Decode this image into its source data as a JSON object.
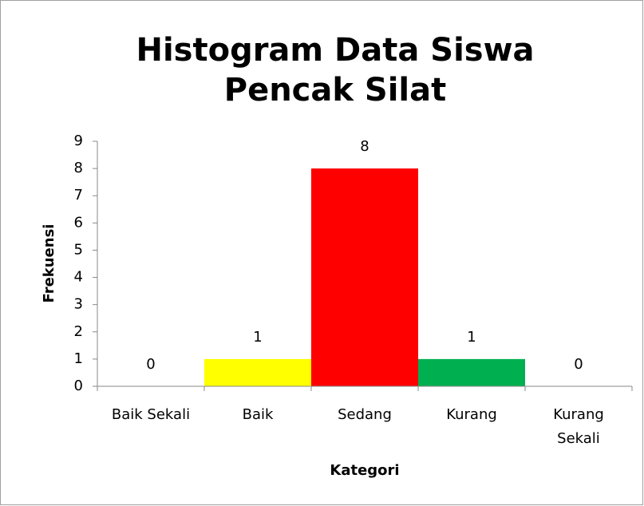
{
  "chart_data": {
    "type": "bar",
    "title": "Histogram Data Siswa Pencak Silat",
    "xlabel": "Kategori",
    "ylabel": "Frekuensi",
    "categories": [
      "Baik Sekali",
      "Baik",
      "Sedang",
      "Kurang",
      "Kurang Sekali"
    ],
    "values": [
      0,
      1,
      8,
      1,
      0
    ],
    "colors": [
      null,
      "#ffff00",
      "#ff0000",
      "#00b050",
      null
    ],
    "ylim": [
      0,
      9
    ],
    "yticks": [
      0,
      1,
      2,
      3,
      4,
      5,
      6,
      7,
      8,
      9
    ],
    "grid": false,
    "data_labels": true
  }
}
